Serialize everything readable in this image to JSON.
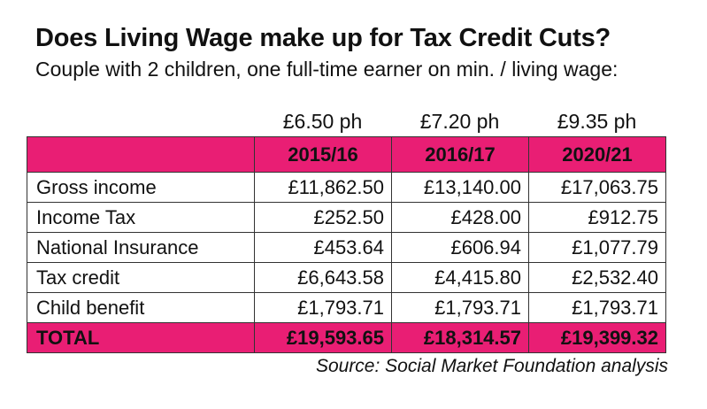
{
  "title": "Does Living Wage make up for Tax Credit Cuts?",
  "subtitle": "Couple with 2 children, one full-time earner on min. / living wage:",
  "hourly_rates": [
    "£6.50 ph",
    "£7.20 ph",
    "£9.35 ph"
  ],
  "years": [
    "2015/16",
    "2016/17",
    "2020/21"
  ],
  "rows": [
    {
      "label": "Gross income",
      "values": [
        "£11,862.50",
        "£13,140.00",
        "£17,063.75"
      ]
    },
    {
      "label": "Income Tax",
      "values": [
        "£252.50",
        "£428.00",
        "£912.75"
      ]
    },
    {
      "label": "National Insurance",
      "values": [
        "£453.64",
        "£606.94",
        "£1,077.79"
      ]
    },
    {
      "label": "Tax credit",
      "values": [
        "£6,643.58",
        "£4,415.80",
        "£2,532.40"
      ]
    },
    {
      "label": "Child benefit",
      "values": [
        "£1,793.71",
        "£1,793.71",
        "£1,793.71"
      ]
    }
  ],
  "total": {
    "label": "TOTAL",
    "values": [
      "£19,593.65",
      "£18,314.57",
      "£19,399.32"
    ]
  },
  "source": "Source: Social Market Foundation analysis",
  "colors": {
    "accent": "#e91e74",
    "border": "#333333"
  }
}
